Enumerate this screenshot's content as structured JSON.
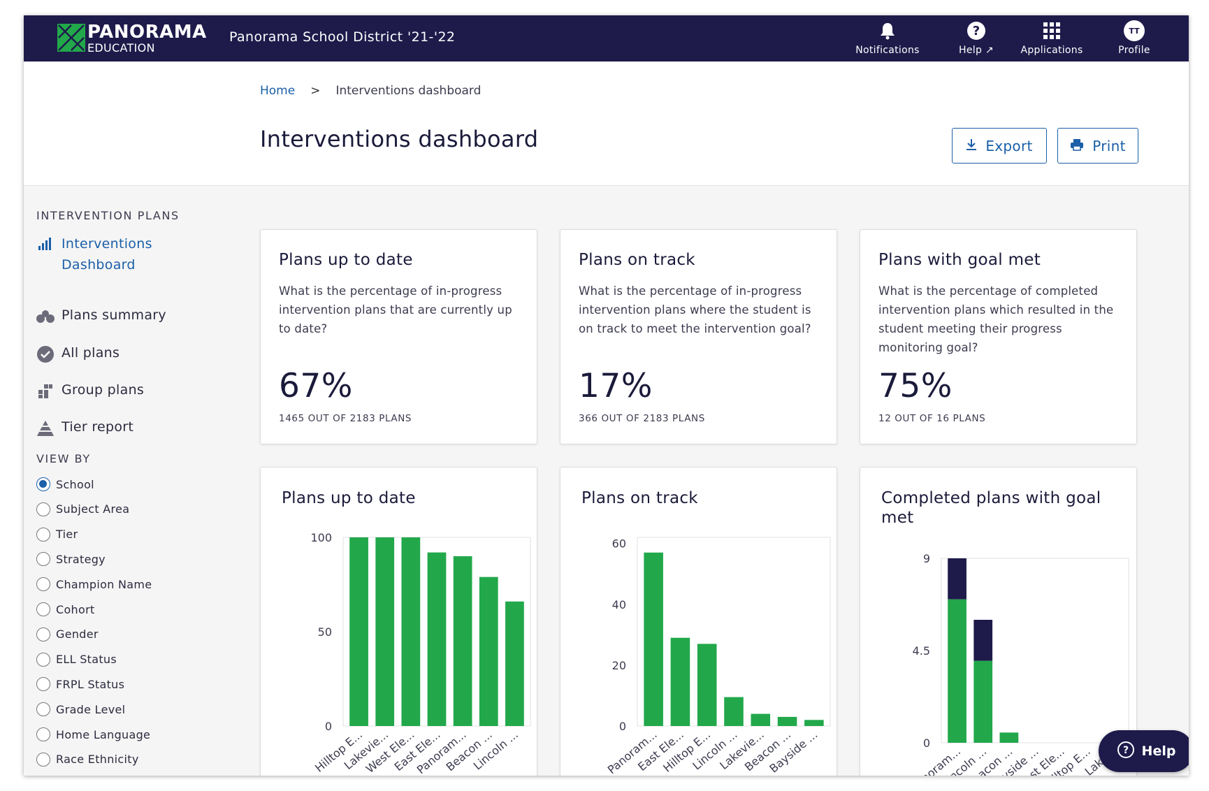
{
  "brand": {
    "name": "PANORAMA",
    "sub": "EDUCATION"
  },
  "district": "Panorama School District '21-'22",
  "nav": {
    "notifications": "Notifications",
    "help": "Help",
    "applications": "Applications",
    "profile": "Profile",
    "profile_initials": "TT"
  },
  "breadcrumb": {
    "home": "Home",
    "separator": ">",
    "current": "Interventions dashboard"
  },
  "page_title": "Interventions dashboard",
  "actions": {
    "export": "Export",
    "print": "Print"
  },
  "sidebar": {
    "plans_heading": "INTERVENTION PLANS",
    "items": [
      {
        "label_line1": "Interventions",
        "label_line2": "Dashboard",
        "icon": "bar-chart-icon",
        "active": true
      },
      {
        "label": "Plans summary",
        "icon": "bubbles-icon"
      },
      {
        "label": "All plans",
        "icon": "check-circle-icon"
      },
      {
        "label": "Group plans",
        "icon": "group-grid-icon"
      },
      {
        "label": "Tier report",
        "icon": "pyramid-icon"
      }
    ],
    "view_by_heading": "VIEW BY",
    "view_by_options": [
      "School",
      "Subject Area",
      "Tier",
      "Strategy",
      "Champion Name",
      "Cohort",
      "Gender",
      "ELL Status",
      "FRPL Status",
      "Grade Level",
      "Home Language",
      "Race Ethnicity"
    ],
    "view_by_selected": "School"
  },
  "stats": [
    {
      "title": "Plans up to date",
      "question": "What is the percentage of in-progress intervention plans that are currently up to date?",
      "percent": "67%",
      "count": "1465 OUT OF 2183 PLANS"
    },
    {
      "title": "Plans on track",
      "question": "What is the percentage of in-progress intervention plans where the student is on track to meet the intervention goal?",
      "percent": "17%",
      "count": "366 OUT OF 2183 PLANS"
    },
    {
      "title": "Plans with goal met",
      "question": "What is the percentage of completed intervention plans which resulted in the student meeting their progress monitoring goal?",
      "percent": "75%",
      "count": "12 OUT OF 16 PLANS"
    }
  ],
  "colors": {
    "nav_bg": "#1e1b4b",
    "accent": "#1b5fa8",
    "bar_green": "#22a84a",
    "bar_navy": "#1e1b4b",
    "logo_green": "#22a84a"
  },
  "float_help": "Help",
  "chart_data": [
    {
      "type": "bar",
      "title": "Plans up to date",
      "categories": [
        "Hilltop E...",
        "Lakevie...",
        "West Ele...",
        "East Ele...",
        "Panoram...",
        "Beacon ...",
        "Lincoln ..."
      ],
      "values": [
        100,
        100,
        100,
        92,
        90,
        79,
        66
      ],
      "ylim": [
        0,
        100
      ],
      "yticks": [
        0,
        50,
        100
      ],
      "grid": false
    },
    {
      "type": "bar",
      "title": "Plans on track",
      "categories": [
        "Panoram...",
        "East Ele...",
        "Hilltop E...",
        "Lincoln ...",
        "Lakevie...",
        "Beacon ...",
        "Bayside ..."
      ],
      "values": [
        57,
        29,
        27,
        9.5,
        4,
        3,
        2
      ],
      "ylim": [
        0,
        62
      ],
      "yticks": [
        0,
        20,
        40,
        60
      ],
      "grid": false
    },
    {
      "type": "bar",
      "stacked": true,
      "title": "Completed plans with goal met",
      "categories": [
        "Panoram...",
        "Lincoln ...",
        "Beacon ...",
        "Bayside ...",
        "East Ele...",
        "Hilltop E...",
        "Lake..."
      ],
      "series": [
        {
          "values": [
            7,
            4,
            0.5,
            0,
            0,
            0,
            0
          ]
        },
        {
          "values": [
            2,
            2,
            0,
            0,
            0,
            0,
            0
          ]
        }
      ],
      "ylim": [
        0,
        9
      ],
      "yticks": [
        0,
        4.5,
        9
      ],
      "grid": false
    }
  ]
}
